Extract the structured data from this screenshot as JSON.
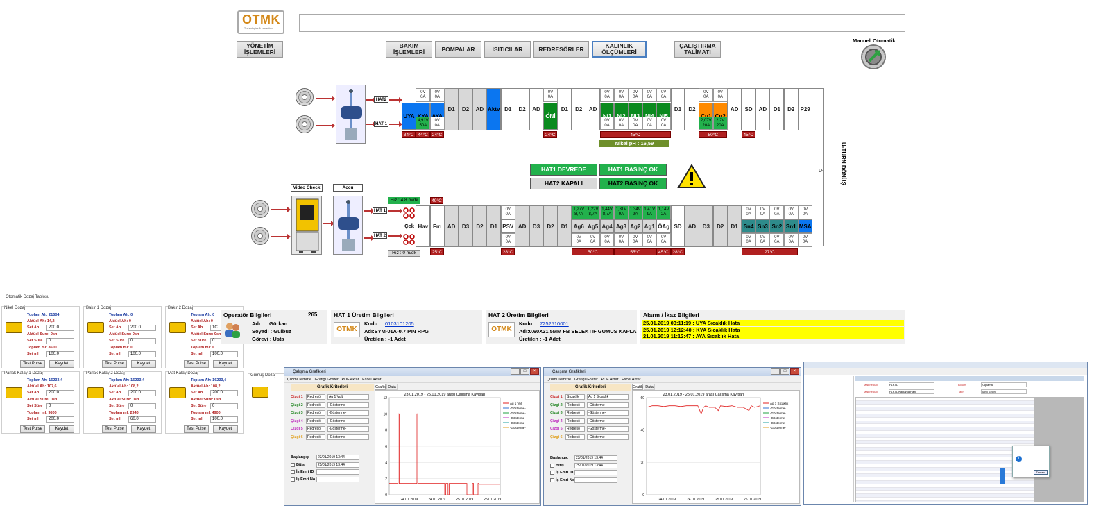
{
  "header": {
    "logo_text": "OTMK",
    "logo_sub": "Technologies & Innovation",
    "mode_labels": {
      "manual": "Manuel",
      "auto": "Otomatik"
    }
  },
  "nav": {
    "management": "YÖNETİM\nİŞLEMLERİ",
    "maintenance": "BAKIM\nİŞLEMLERİ",
    "pumps": "POMPALAR",
    "heaters": "ISITICILAR",
    "rectifiers": "REDRESÖRLER",
    "thickness": "KALINLIK\nÖLÇÜMLERİ",
    "instruction": "ÇALIŞTIRMA\nTALİMATI"
  },
  "top_line": {
    "hat2": "HAT2",
    "hat1": "HAT 1",
    "tanks": [
      "UYA",
      "KYA",
      "AYA",
      "D1",
      "D2",
      "AD",
      "Aktv",
      "D1",
      "D2",
      "AD",
      "ÖNİ",
      "D1",
      "D2",
      "AD",
      "Ni1",
      "Ni2",
      "Ni3",
      "Ni4",
      "Ni5",
      "D1",
      "D2",
      "Cu1",
      "Cu2",
      "AD",
      "SD",
      "AD",
      "D1",
      "D2",
      "P29"
    ],
    "meter_text_top": "0V\n0A",
    "meter_kya_bottom": "4,91V\n50A",
    "meter_cu1_bottom": "2,07V\n20A",
    "meter_cu2_bottom": "2,2V\n20A",
    "temps": [
      "34°C",
      "44°C",
      "24°C",
      "24°C",
      "45°C",
      "50°C",
      "45°C"
    ],
    "nikel_ph": "Nikel pH : 16,59"
  },
  "uturn": "U-TURN DÖNÜŞ",
  "uturn_short": "U-",
  "status_panel": {
    "hat1_devrede": "HAT1 DEVREDE",
    "hat1_pressure": "HAT1 BASINÇ OK",
    "hat2_closed": "HAT2 KAPALI",
    "hat2_pressure": "HAT2 BASINÇ OK"
  },
  "bottom_line": {
    "video_check": "Video Check",
    "accu": "Accu",
    "speed_top": "Hız : 4,8 m/dk",
    "speed_bottom": "Hız : 0 m/dk",
    "hat1": "HAT 1",
    "hat2": "HAT 2",
    "temp_49": "49°C",
    "tanks": [
      "Çek",
      "Hav",
      "Fırı",
      "AD",
      "D3",
      "D2",
      "D1",
      "PSV",
      "AD",
      "D3",
      "D2",
      "D1",
      "Ag6",
      "Ag5",
      "Ag4",
      "Ag3",
      "Ag2",
      "Ag1",
      "ÖAg",
      "SD",
      "AD",
      "D3",
      "D2",
      "D1",
      "Sn4",
      "Sn3",
      "Sn2",
      "Sn1",
      "MSA"
    ],
    "ag_meters": [
      "1,27V\n8,7A",
      "1,22V\n8,7A",
      "1,44V\n8,7A",
      "1,31V\n9A",
      "1,34V\n9A",
      "1,41V\n9A",
      "1,14V\n2A"
    ],
    "temps": [
      "25°C",
      "28°C",
      "50°C",
      "55°C",
      "45°C",
      "28°C",
      "27°C"
    ]
  },
  "dosing": {
    "window_title": "Otomatik Dozaj Tablosu",
    "panels": [
      {
        "title": "Nikel Dozaj",
        "toplam": "Toplam Ah: 21504",
        "aktuel": "Aktüel Ah: 14,2",
        "setah": "200.0",
        "sure": "Aktüel Sure: 0sn",
        "setsure": "0",
        "toplam_ml": "Toplam ml: 3600",
        "setml": "100.0"
      },
      {
        "title": "Bakır 1 Dozaj",
        "toplam": "Toplam Ah: 0",
        "aktuel": "Aktüel Ah: 0",
        "setah": "200.0",
        "sure": "Aktüel Sure: 0sn",
        "setsure": "0",
        "toplam_ml": "Toplam ml: 0",
        "setml": "100.0"
      },
      {
        "title": "Bakır 2 Dozaj",
        "toplam": "Toplam Ah: 0",
        "aktuel": "Aktüel Ah: 0",
        "setah": "1C",
        "sure": "Aktüel Sure: 0sn",
        "setsure": "0",
        "toplam_ml": "Toplam ml: 0",
        "setml": "100.0"
      },
      {
        "title": "Parlak Kalay 1 Dozaj",
        "toplam": "Toplam Ah: 16233,4",
        "aktuel": "Aktüel Ah: 107,6",
        "setah": "200.0",
        "sure": "Aktüel Sure: 0sn",
        "setsure": "0",
        "toplam_ml": "Toplam ml: 9800",
        "setml": "200.0"
      },
      {
        "title": "Parlak Kalay 2 Dozaj",
        "toplam": "Toplam Ah: 16233,4",
        "aktuel": "Aktüel Ah: 108,2",
        "setah": "200.0",
        "sure": "Aktüel Sure: 0sn",
        "setsure": "0",
        "toplam_ml": "Toplam ml: 2940",
        "setml": "60.0"
      },
      {
        "title": "Mat Kalay Dozaj",
        "toplam": "Toplam Ah: 16233,4",
        "aktuel": "Aktüel Ah: 108,2",
        "setah": "200.0",
        "sure": "Aktüel Sure: 0sn",
        "setsure": "0",
        "toplam_ml": "Toplam ml: 4900",
        "setml": "100.0"
      }
    ],
    "gumus_title": "Gümüş Dozaj",
    "labels": {
      "setah": "Set Ah",
      "setsure": "Set Süre",
      "setml": "Set ml",
      "test": "Test Pulse",
      "save": "Kaydet"
    }
  },
  "operator": {
    "title": "Operatör Bilgileri",
    "count": "265",
    "name": "Adı    : Gürkan",
    "surname": "Soyadı : Gülbuz",
    "role": "Görevi : Usta"
  },
  "hat1_prod": {
    "title": "HAT 1 Üretim Bilgileri",
    "code_label": "Kodu :",
    "code": "0103101205",
    "name": "Adı:SYM-01A-0.7 PIN RPG",
    "produced": "Üretilen : -1 Adet"
  },
  "hat2_prod": {
    "title": "HAT 2 Üretim Bilgileri",
    "code_label": "Kodu :",
    "code": "7252510001",
    "name": "Adı:0.60X21.5MM FB SELEKTIF GUMUS KAPLA",
    "produced": "Üretilen : -1 Adet"
  },
  "alarms": {
    "title": "Alarm / İkaz Bilgileri",
    "items": [
      "25.01.2019 03:11:19 : UYA Sıcaklık Hata",
      "25.01.2019 12:12:40 : KYA Sıcaklık Hata",
      "21.01.2019 11:12:47 : AYA Sıcaklık Hata"
    ]
  },
  "chart_win1": {
    "title": "Çalışma Grafikleri",
    "menu": [
      "Çizimi Temizle",
      "Grafiği Göster",
      "PDF Aktar",
      "Excel Aktar"
    ],
    "criteria_title": "Grafik Kriterleri",
    "tabs": [
      "Grafik",
      "Data"
    ],
    "rows": [
      {
        "label": "Çizgi 1",
        "type": "Redresö",
        "value": "Ag 1 Volt"
      },
      {
        "label": "Çizgi 2",
        "type": "Redresö",
        "value": "-Gösterme-"
      },
      {
        "label": "Çizgi 3",
        "type": "Redresö",
        "value": "-Gösterme-"
      },
      {
        "label": "Çizgi 4",
        "type": "Redresö",
        "value": "-Gösterme-"
      },
      {
        "label": "Çizgi 5",
        "type": "Redresö",
        "value": "-Gösterme-"
      },
      {
        "label": "Çizgi 6",
        "type": "Redresö",
        "value": "-Gösterme-"
      }
    ],
    "start_label": "Başlangıç",
    "start": "23/01/2019 13:44",
    "end_label": "Bitiş",
    "end": "25/01/2019 13:44",
    "order_id": "İş Emri ID",
    "order_no": "İş Emri No"
  },
  "chart_win2": {
    "title": "Çalışma Grafikleri",
    "menu": [
      "Çizimi Temizle",
      "Grafiği Göster",
      "PDF Aktar",
      "Excel Aktar"
    ],
    "criteria_title": "Grafik Kriterleri",
    "tabs": [
      "Grafik",
      "Data"
    ],
    "rows": [
      {
        "label": "Çizgi 1",
        "type": "Sıcaklık",
        "value": "Ag 1 Sıcaklık"
      },
      {
        "label": "Çizgi 2",
        "type": "Redresö",
        "value": "-Gösterme-"
      },
      {
        "label": "Çizgi 3",
        "type": "Redresö",
        "value": "-Gösterme-"
      },
      {
        "label": "Çizgi 4",
        "type": "Redresö",
        "value": "-Gösterme-"
      },
      {
        "label": "Çizgi 5",
        "type": "Redresö",
        "value": "-Gösterme-"
      },
      {
        "label": "Çizgi 6",
        "type": "Redresö",
        "value": "-Gösterme-"
      }
    ],
    "start_label": "Başlangıç",
    "start": "23/01/2019 13:44",
    "end_label": "Bitiş",
    "end": "25/01/2019 13:44",
    "order_id": "İş Emri ID",
    "order_no": "İş Emri No"
  },
  "chart_data": [
    {
      "type": "line",
      "title": "23.01.2019 - 25.01.2019 arası Çalışma Kayıtları",
      "x_ticks": [
        "24.01.2019",
        "24.01.2019",
        "25.01.2019",
        "25.01.2019"
      ],
      "ylim": [
        0,
        12
      ],
      "y_ticks": [
        0,
        2,
        4,
        6,
        8,
        10,
        12
      ],
      "series": [
        {
          "name": "Ag 1 Volt",
          "color": "#e02020",
          "x": [
            0,
            0.08,
            0.08,
            0.09,
            0.09,
            0.25,
            0.25,
            0.26,
            0.26,
            0.5,
            0.5,
            0.51,
            0.51,
            0.53,
            0.53,
            0.54,
            0.54,
            0.7,
            0.7,
            0.75,
            0.75,
            0.76,
            0.76,
            0.8,
            0.8,
            0.81,
            0.81,
            1
          ],
          "y": [
            1.4,
            1.4,
            10,
            10,
            1.4,
            1.4,
            10,
            10,
            1.4,
            1.4,
            0,
            0,
            1.4,
            1.4,
            0,
            0,
            1.4,
            1.4,
            0,
            0,
            1.4,
            1.4,
            0,
            0,
            1.4,
            1.4,
            1.3,
            1.3
          ]
        },
        {
          "name": "-Gösterme-",
          "color": "#3070d0",
          "x": [],
          "y": []
        },
        {
          "name": "-Gösterme-",
          "color": "#20a040",
          "x": [],
          "y": []
        },
        {
          "name": "-Gösterme-",
          "color": "#c030c0",
          "x": [],
          "y": []
        },
        {
          "name": "-Gösterme-",
          "color": "#20a0a0",
          "x": [],
          "y": []
        },
        {
          "name": "-Gösterme-",
          "color": "#e0a020",
          "x": [],
          "y": []
        }
      ]
    },
    {
      "type": "line",
      "title": "23.01.2019 - 25.01.2019 arası Çalışma Kayıtları",
      "x_ticks": [
        "24.01.2019",
        "24.01.2019",
        "25.01.2019",
        "25.01.2019"
      ],
      "ylim": [
        0,
        60
      ],
      "y_ticks": [
        0,
        20,
        40,
        60
      ],
      "series": [
        {
          "name": "Ag 1 Sıcaklık",
          "color": "#e02020",
          "x": [
            0,
            0.05,
            0.1,
            0.15,
            0.2,
            0.25,
            0.3,
            0.35,
            0.4,
            0.45,
            0.48,
            0.5,
            0.52,
            0.55,
            0.6,
            0.63,
            0.65,
            0.7,
            0.75,
            0.8,
            0.85,
            0.9,
            0.92,
            0.95,
            1
          ],
          "y": [
            54,
            55,
            55,
            54.5,
            55,
            55,
            54.5,
            55,
            55,
            55,
            50,
            54,
            55,
            54,
            54,
            52,
            55,
            54.5,
            55,
            54,
            54,
            52,
            55,
            54,
            55
          ]
        },
        {
          "name": "-Gösterme-",
          "color": "#3070d0",
          "x": [],
          "y": []
        },
        {
          "name": "-Gösterme-",
          "color": "#20a040",
          "x": [],
          "y": []
        },
        {
          "name": "-Gösterme-",
          "color": "#c030c0",
          "x": [],
          "y": []
        },
        {
          "name": "-Gösterme-",
          "color": "#20a0a0",
          "x": [],
          "y": []
        },
        {
          "name": "-Gösterme-",
          "color": "#e0a020",
          "x": [],
          "y": []
        }
      ]
    }
  ],
  "report_win": {
    "field1_label": "Makine Adı",
    "field1_value": "PLKTL",
    "field2_label": "Makine Adı",
    "field2_value": "PLKTL Kaplama Hattı",
    "field3_label": "Bölüm",
    "field3_value": "Kaplama",
    "field4_label": "Tarih",
    "field4_value": "Tarih Seçin",
    "dialog_btn": "Tamam"
  },
  "colors": {
    "blue_tank": "#0b76f0",
    "green": "#22b14c",
    "orange": "#ff8a00",
    "teal": "#2e8b8b",
    "temp_red": "#b02020",
    "alarm_yellow": "#ffff00"
  }
}
